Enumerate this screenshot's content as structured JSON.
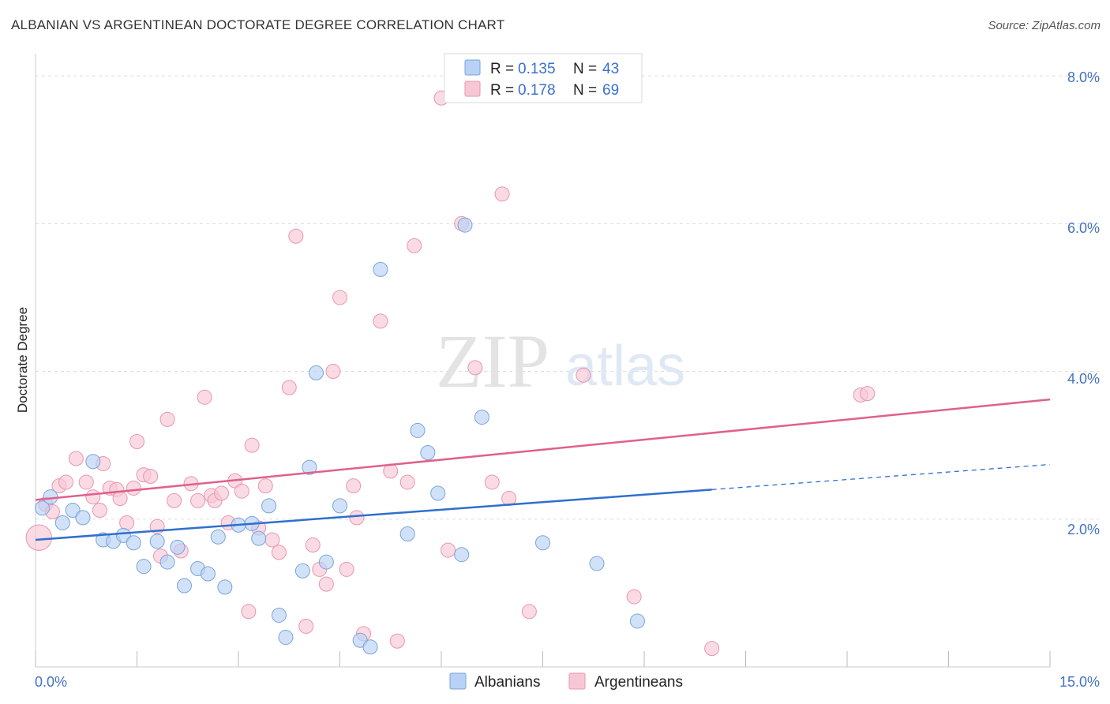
{
  "title": "ALBANIAN VS ARGENTINEAN DOCTORATE DEGREE CORRELATION CHART",
  "source": "Source: ZipAtlas.com",
  "watermark": {
    "zip": "ZIP",
    "atlas": "atlas"
  },
  "colors": {
    "albanian_fill": "#b8d2f5",
    "albanian_stroke": "#7aa3dd",
    "albanian_line": "#2f6fcf",
    "argentinean_fill": "#f7c7d6",
    "argentinean_stroke": "#e995b1",
    "argentinean_line": "#e0608c",
    "grid": "#dddddd",
    "tick_text": "#4472c4"
  },
  "chart_data": {
    "type": "scatter",
    "title": "ALBANIAN VS ARGENTINEAN DOCTORATE DEGREE CORRELATION CHART",
    "xlabel": "",
    "ylabel": "Doctorate Degree",
    "xlim": [
      0,
      15
    ],
    "ylim": [
      0,
      8.3
    ],
    "x_tick_labels": [
      "0.0%",
      "15.0%"
    ],
    "y_ticks": [
      2,
      4,
      6,
      8
    ],
    "y_tick_labels": [
      "2.0%",
      "4.0%",
      "6.0%",
      "8.0%"
    ],
    "legend": [
      {
        "r_label": "R =",
        "r_value": "0.135",
        "n_label": "N =",
        "n_value": "43"
      },
      {
        "r_label": "R =",
        "r_value": "0.178",
        "n_label": "N =",
        "n_value": "69"
      }
    ],
    "series": [
      {
        "name": "Albanians",
        "trend": {
          "x0": 0,
          "y0": 1.72,
          "x1": 10.0,
          "y1": 2.4,
          "dash_x1": 15.0,
          "dash_y1": 2.74
        },
        "points": [
          [
            0.1,
            2.15,
            1.0
          ],
          [
            0.22,
            2.3,
            1.0
          ],
          [
            0.4,
            1.95,
            1.0
          ],
          [
            0.55,
            2.12,
            1.0
          ],
          [
            0.7,
            2.02,
            1.0
          ],
          [
            0.85,
            2.78,
            1.0
          ],
          [
            1.0,
            1.72,
            1.0
          ],
          [
            1.15,
            1.7,
            1.0
          ],
          [
            1.3,
            1.78,
            1.0
          ],
          [
            1.45,
            1.68,
            1.0
          ],
          [
            1.6,
            1.36,
            1.0
          ],
          [
            1.8,
            1.7,
            1.0
          ],
          [
            1.95,
            1.42,
            1.0
          ],
          [
            2.1,
            1.62,
            1.0
          ],
          [
            2.2,
            1.1,
            1.0
          ],
          [
            2.4,
            1.33,
            1.0
          ],
          [
            2.55,
            1.26,
            1.0
          ],
          [
            2.7,
            1.76,
            1.0
          ],
          [
            2.8,
            1.08,
            1.0
          ],
          [
            3.0,
            1.92,
            1.0
          ],
          [
            3.2,
            1.94,
            1.0
          ],
          [
            3.3,
            1.74,
            1.0
          ],
          [
            3.45,
            2.18,
            1.0
          ],
          [
            3.6,
            0.7,
            1.0
          ],
          [
            3.7,
            0.4,
            1.0
          ],
          [
            3.95,
            1.3,
            1.0
          ],
          [
            4.05,
            2.7,
            1.0
          ],
          [
            4.15,
            3.98,
            1.0
          ],
          [
            4.3,
            1.42,
            1.0
          ],
          [
            4.5,
            2.18,
            1.0
          ],
          [
            4.8,
            0.36,
            1.0
          ],
          [
            4.95,
            0.27,
            1.0
          ],
          [
            5.1,
            5.38,
            1.0
          ],
          [
            5.5,
            1.8,
            1.0
          ],
          [
            5.65,
            3.2,
            1.0
          ],
          [
            5.8,
            2.9,
            1.0
          ],
          [
            5.95,
            2.35,
            1.0
          ],
          [
            6.3,
            1.52,
            1.0
          ],
          [
            6.35,
            5.98,
            1.0
          ],
          [
            6.6,
            3.38,
            1.0
          ],
          [
            7.5,
            1.68,
            1.0
          ],
          [
            8.3,
            1.4,
            1.0
          ],
          [
            8.9,
            0.62,
            1.0
          ]
        ]
      },
      {
        "name": "Argentineans",
        "trend": {
          "x0": 0,
          "y0": 2.26,
          "x1": 15.0,
          "y1": 3.62
        },
        "points": [
          [
            0.05,
            1.75,
            1.8
          ],
          [
            0.15,
            2.2,
            1.0
          ],
          [
            0.25,
            2.1,
            1.0
          ],
          [
            0.35,
            2.45,
            1.0
          ],
          [
            0.45,
            2.5,
            1.0
          ],
          [
            0.6,
            2.82,
            1.0
          ],
          [
            0.75,
            2.5,
            1.0
          ],
          [
            0.85,
            2.3,
            1.0
          ],
          [
            0.95,
            2.12,
            1.0
          ],
          [
            1.0,
            2.75,
            1.0
          ],
          [
            1.1,
            2.42,
            1.0
          ],
          [
            1.2,
            2.4,
            1.0
          ],
          [
            1.25,
            2.28,
            1.0
          ],
          [
            1.35,
            1.95,
            1.0
          ],
          [
            1.45,
            2.42,
            1.0
          ],
          [
            1.5,
            3.05,
            1.0
          ],
          [
            1.6,
            2.6,
            1.0
          ],
          [
            1.7,
            2.58,
            1.0
          ],
          [
            1.8,
            1.9,
            1.0
          ],
          [
            1.85,
            1.5,
            1.0
          ],
          [
            1.95,
            3.35,
            1.0
          ],
          [
            2.05,
            2.25,
            1.0
          ],
          [
            2.15,
            1.57,
            1.0
          ],
          [
            2.3,
            2.48,
            1.0
          ],
          [
            2.4,
            2.25,
            1.0
          ],
          [
            2.5,
            3.65,
            1.0
          ],
          [
            2.6,
            2.32,
            1.0
          ],
          [
            2.65,
            2.25,
            1.0
          ],
          [
            2.75,
            2.35,
            1.0
          ],
          [
            2.85,
            1.95,
            1.0
          ],
          [
            2.95,
            2.52,
            1.0
          ],
          [
            3.05,
            2.38,
            1.0
          ],
          [
            3.15,
            0.75,
            1.0
          ],
          [
            3.2,
            3.0,
            1.0
          ],
          [
            3.3,
            1.88,
            1.0
          ],
          [
            3.4,
            2.45,
            1.0
          ],
          [
            3.5,
            1.72,
            1.0
          ],
          [
            3.6,
            1.55,
            1.0
          ],
          [
            3.75,
            3.78,
            1.0
          ],
          [
            3.85,
            5.83,
            1.0
          ],
          [
            4.0,
            0.55,
            1.0
          ],
          [
            4.1,
            1.65,
            1.0
          ],
          [
            4.2,
            1.32,
            1.0
          ],
          [
            4.3,
            1.12,
            1.0
          ],
          [
            4.4,
            4.0,
            1.0
          ],
          [
            4.5,
            5.0,
            1.0
          ],
          [
            4.6,
            1.32,
            1.0
          ],
          [
            4.7,
            2.45,
            1.0
          ],
          [
            4.75,
            2.02,
            1.0
          ],
          [
            4.85,
            0.45,
            1.0
          ],
          [
            5.1,
            4.68,
            1.0
          ],
          [
            5.25,
            2.65,
            1.0
          ],
          [
            5.35,
            0.35,
            1.0
          ],
          [
            5.5,
            2.5,
            1.0
          ],
          [
            5.6,
            5.7,
            1.0
          ],
          [
            6.0,
            7.7,
            1.0
          ],
          [
            6.1,
            1.58,
            1.0
          ],
          [
            6.3,
            6.0,
            1.0
          ],
          [
            6.5,
            4.05,
            1.0
          ],
          [
            6.75,
            2.5,
            1.0
          ],
          [
            6.9,
            6.4,
            1.0
          ],
          [
            7.0,
            2.28,
            1.0
          ],
          [
            7.3,
            0.75,
            1.0
          ],
          [
            8.1,
            3.95,
            1.0
          ],
          [
            8.85,
            0.95,
            1.0
          ],
          [
            10.0,
            0.25,
            1.0
          ],
          [
            12.2,
            3.68,
            1.0
          ],
          [
            12.3,
            3.7,
            1.0
          ]
        ]
      }
    ]
  }
}
